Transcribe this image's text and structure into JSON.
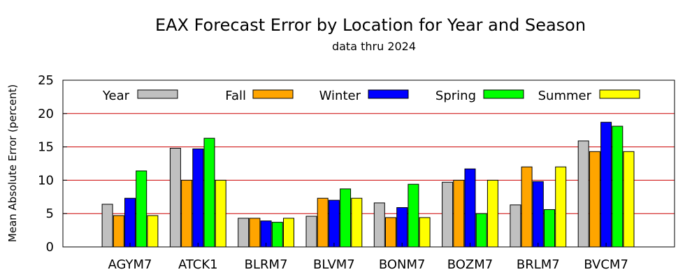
{
  "chart_data": {
    "type": "bar",
    "title": "EAX Forecast Error by Location for Year and Season",
    "subtitle": "data thru 2024",
    "ylabel": "Mean Absolute Error (percent)",
    "xlabel": "",
    "ylim": [
      0,
      25
    ],
    "yticks": [
      0,
      5,
      10,
      15,
      20,
      25
    ],
    "grid": "horizontal",
    "legend_position": "top",
    "categories": [
      "AGYM7",
      "ATCK1",
      "BLRM7",
      "BLVM7",
      "BONM7",
      "BOZM7",
      "BRLM7",
      "BVCM7"
    ],
    "series": [
      {
        "name": "Year",
        "color": "#c0c0c0",
        "values": [
          6.4,
          14.8,
          4.3,
          4.6,
          6.6,
          9.7,
          6.3,
          15.9
        ]
      },
      {
        "name": "Fall",
        "color": "#ffa500",
        "values": [
          4.7,
          10.0,
          4.3,
          7.3,
          4.4,
          10.0,
          12.0,
          14.3
        ]
      },
      {
        "name": "Winter",
        "color": "#0000ff",
        "values": [
          7.3,
          14.7,
          3.9,
          7.0,
          5.9,
          11.7,
          9.8,
          18.7
        ]
      },
      {
        "name": "Spring",
        "color": "#00ff00",
        "values": [
          11.4,
          16.3,
          3.7,
          8.7,
          9.4,
          5.0,
          5.6,
          18.1
        ]
      },
      {
        "name": "Summer",
        "color": "#ffff00",
        "values": [
          4.7,
          10.0,
          4.3,
          7.3,
          4.4,
          10.0,
          12.0,
          14.3
        ]
      }
    ]
  }
}
